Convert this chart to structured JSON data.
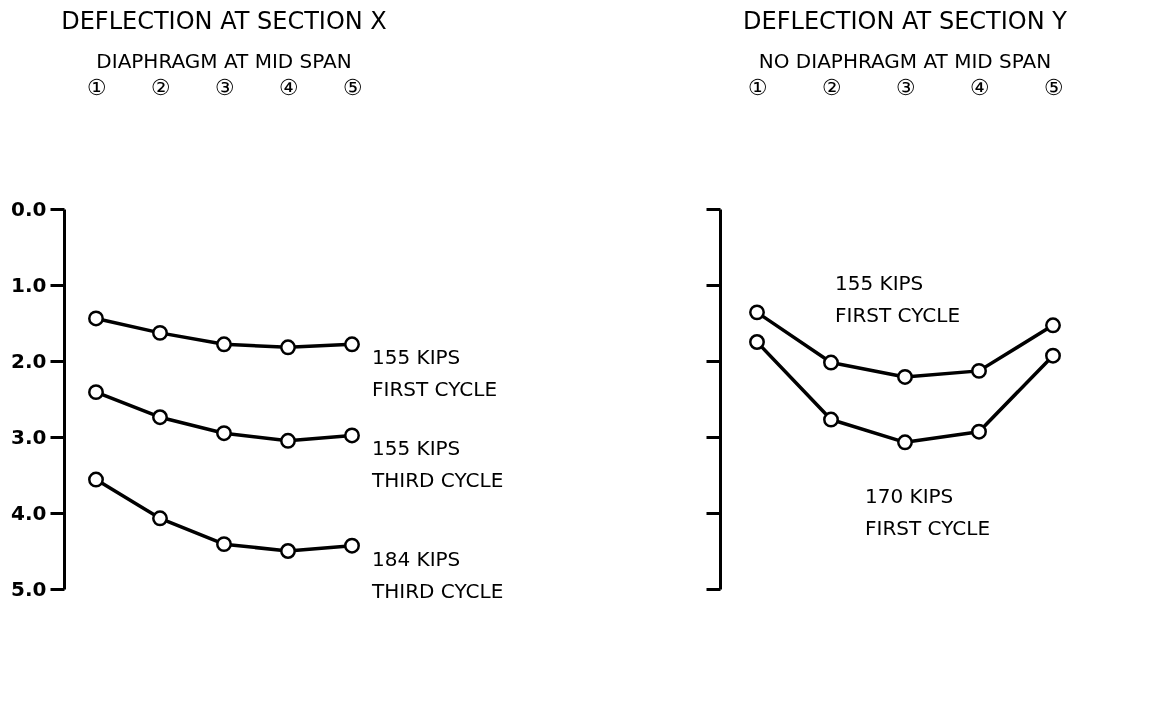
{
  "chart_data": [
    {
      "type": "line",
      "title": "DEFLECTION AT SECTION X",
      "subtitle": "DIAPHRAGM AT MID SPAN",
      "categories": [
        "①",
        "②",
        "③",
        "④",
        "⑤"
      ],
      "ylim": [
        5.0,
        0.0
      ],
      "yticks": [
        {
          "value": 0,
          "label": "0.0"
        },
        {
          "value": 1,
          "label": "1.0"
        },
        {
          "value": 2,
          "label": "2.0"
        },
        {
          "value": 3,
          "label": "3.0"
        },
        {
          "value": 4,
          "label": "4.0"
        },
        {
          "value": 5,
          "label": "5.0"
        }
      ],
      "grid": false,
      "marker": "circle",
      "line_style": "solid",
      "series": [
        {
          "name": "155 KIPS\nFIRST CYCLE",
          "color": "#000000",
          "values": [
            1.44,
            1.63,
            1.78,
            1.82,
            1.78
          ]
        },
        {
          "name": "155 KIPS\nTHIRD CYCLE",
          "color": "#000000",
          "values": [
            2.41,
            2.74,
            2.95,
            3.05,
            2.98
          ]
        },
        {
          "name": "184 KIPS\nTHIRD CYCLE",
          "color": "#000000",
          "values": [
            3.56,
            4.07,
            4.41,
            4.5,
            4.43
          ]
        }
      ]
    },
    {
      "type": "line",
      "title": "DEFLECTION AT SECTION Y",
      "subtitle": "NO DIAPHRAGM AT MID SPAN",
      "categories": [
        "①",
        "②",
        "③",
        "④",
        "⑤"
      ],
      "ylim": [
        5.0,
        0.0
      ],
      "yticks": [
        {
          "value": 0,
          "label": null
        },
        {
          "value": 1,
          "label": null
        },
        {
          "value": 2,
          "label": null
        },
        {
          "value": 3,
          "label": null
        },
        {
          "value": 4,
          "label": null
        },
        {
          "value": 5,
          "label": null
        }
      ],
      "tick_labels": "x",
      "grid": false,
      "marker": "circle",
      "line_style": "solid",
      "series": [
        {
          "name": "155 KIPS\nFIRST CYCLE",
          "color": "#000000",
          "values": [
            1.36,
            2.02,
            2.21,
            2.13,
            1.53
          ]
        },
        {
          "name": "170 KIPS\nFIRST CYCLE",
          "color": "#000000",
          "values": [
            1.75,
            2.77,
            3.07,
            2.93,
            1.93
          ]
        }
      ]
    }
  ]
}
